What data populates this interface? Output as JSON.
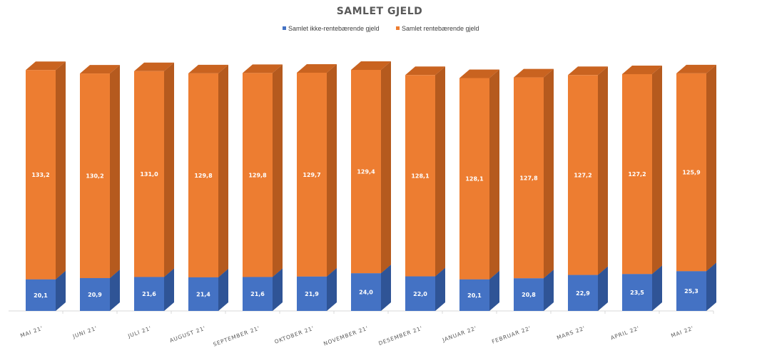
{
  "chart_data": {
    "type": "bar",
    "stacked": true,
    "title": "SAMLET GJELD",
    "categories": [
      "MAI 21'",
      "JUNI 21'",
      "JULI 21'",
      "AUGUST 21'",
      "SEPTEMBER 21'",
      "OKTOBER 21'",
      "NOVEMBER 21'",
      "DESEMBER 21'",
      "JANUAR 22'",
      "FEBRUAR 22'",
      "MARS 22'",
      "APRIL 22'",
      "MAI 22'"
    ],
    "series": [
      {
        "name": "Samlet ikke-rentebærende gjeld",
        "values": [
          20.1,
          20.9,
          21.6,
          21.4,
          21.6,
          21.9,
          24.0,
          22.0,
          20.1,
          20.8,
          22.9,
          23.5,
          25.3
        ],
        "labels": [
          "20,1",
          "20,9",
          "21,6",
          "21,4",
          "21,6",
          "21,9",
          "24,0",
          "22,0",
          "20,1",
          "20,8",
          "22,9",
          "23,5",
          "25,3"
        ]
      },
      {
        "name": "Samlet rentebærende gjeld",
        "values": [
          133.2,
          130.2,
          131.0,
          129.8,
          129.8,
          129.7,
          129.4,
          128.1,
          128.1,
          127.8,
          127.2,
          127.2,
          125.9
        ],
        "labels": [
          "133,2",
          "130,2",
          "131,0",
          "129,8",
          "129,8",
          "129,7",
          "129,4",
          "128,1",
          "128,1",
          "127,8",
          "127,2",
          "127,2",
          "125,9"
        ]
      }
    ],
    "colors": {
      "series_front": [
        "#4472c4",
        "#ed7d31"
      ],
      "series_side": [
        "#2f5496",
        "#b55a1e"
      ],
      "series_top": [
        "#3a64b0",
        "#c96320"
      ]
    },
    "legend_position": "top",
    "grid": false,
    "ylim": [
      0,
      160
    ],
    "three_d": true
  }
}
